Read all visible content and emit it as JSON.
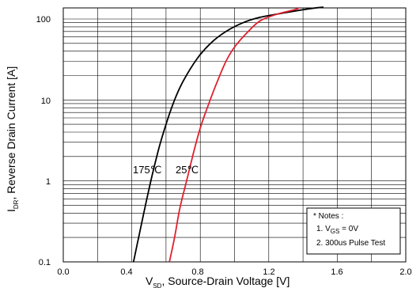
{
  "chart_data": {
    "type": "line",
    "xlabel_main": "V",
    "xlabel_sub": "SD",
    "xlabel_rest": ", Source-Drain Voltage [V]",
    "ylabel_main": "I",
    "ylabel_sub": "DR",
    "ylabel_rest": ", Reverse Drain Current [A]",
    "xlim": [
      0.0,
      2.0
    ],
    "ylim": [
      0.1,
      150
    ],
    "y_scale": "log",
    "grid": true,
    "x_ticks": [
      "0.0",
      "0.4",
      "0.8",
      "1.2",
      "1.6",
      "2.0"
    ],
    "y_ticks": [
      "0.1",
      "1",
      "10",
      "100"
    ],
    "series": [
      {
        "name": "175℃",
        "color": "#000000",
        "x": [
          0.41,
          0.44,
          0.48,
          0.52,
          0.56,
          0.6,
          0.65,
          0.7,
          0.78,
          0.86,
          0.95,
          1.05,
          1.15,
          1.3,
          1.45,
          1.52
        ],
        "y": [
          0.1,
          0.2,
          0.5,
          1.2,
          2.6,
          5,
          10,
          17,
          32,
          50,
          70,
          90,
          105,
          120,
          135,
          140
        ]
      },
      {
        "name": "25℃",
        "color": "#e0202e",
        "x": [
          0.62,
          0.65,
          0.68,
          0.72,
          0.76,
          0.8,
          0.85,
          0.9,
          0.95,
          1.0,
          1.08,
          1.15,
          1.25,
          1.35,
          1.38
        ],
        "y": [
          0.1,
          0.2,
          0.45,
          1.0,
          2.2,
          4.5,
          9,
          17,
          30,
          45,
          70,
          95,
          115,
          130,
          138
        ]
      }
    ],
    "curve_labels": {
      "hot": "175℃",
      "cold": "25℃"
    },
    "notes": {
      "title": "* Notes :",
      "line1_main": "1. V",
      "line1_sub": "GS",
      "line1_rest": " = 0V",
      "line2": "2. 300us Pulse Test"
    }
  }
}
